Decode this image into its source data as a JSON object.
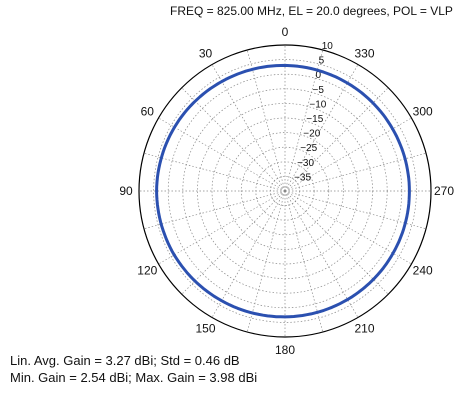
{
  "header": {
    "title": "FREQ =  825.00 MHz, EL = 20.0 degrees, POL = VLP"
  },
  "stats": {
    "line1": "Lin. Avg. Gain = 3.27 dBi;  Std = 0.46 dB",
    "line2": "Min. Gain = 2.54 dBi;  Max. Gain = 3.98 dBi"
  },
  "chart_data": {
    "type": "line",
    "projection": "polar",
    "angle_direction": "counterclockwise",
    "zero_angle_at": "top",
    "angle_ticks": [
      "0",
      "30",
      "60",
      "90",
      "120",
      "150",
      "180",
      "210",
      "240",
      "270",
      "300",
      "330"
    ],
    "radial_ticks": [
      "10",
      "5",
      "0",
      "-5",
      "-10",
      "-15",
      "-20",
      "-25",
      "-30",
      "-35"
    ],
    "rlim": [
      -40,
      10
    ],
    "grid": true,
    "colors": {
      "trace": "#2b50b0",
      "grid": "#888888"
    },
    "series": [
      {
        "angle_deg": [
          0,
          30,
          60,
          90,
          120,
          150,
          180,
          210,
          240,
          270,
          300,
          330,
          360
        ],
        "gain_dbi": [
          3.0,
          3.3,
          3.7,
          3.98,
          3.8,
          3.4,
          3.1,
          2.9,
          2.7,
          2.6,
          2.54,
          2.7,
          3.0
        ]
      }
    ]
  }
}
